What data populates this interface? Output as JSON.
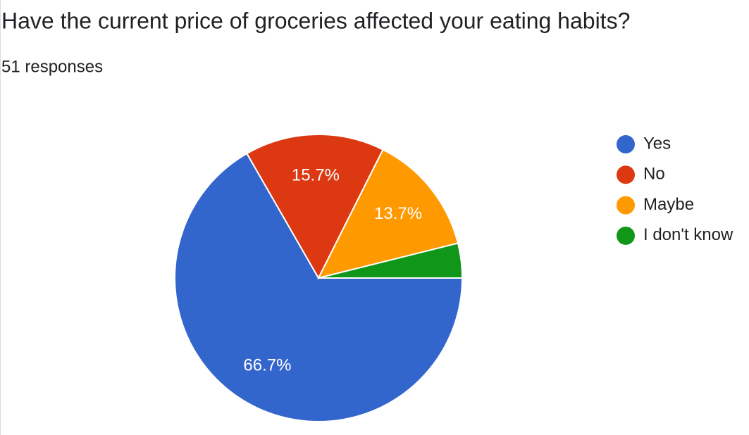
{
  "chart_data": {
    "type": "pie",
    "title": "Have the current price of groceries affected your eating habits?",
    "subtitle": "51 responses",
    "categories": [
      "Yes",
      "No",
      "Maybe",
      "I don't know"
    ],
    "values": [
      66.7,
      15.7,
      13.7,
      3.9
    ],
    "value_labels": [
      "66.7%",
      "15.7%",
      "13.7%",
      null
    ],
    "colors": [
      "#3366cc",
      "#dc3912",
      "#ff9900",
      "#109618"
    ],
    "legend": "right"
  }
}
